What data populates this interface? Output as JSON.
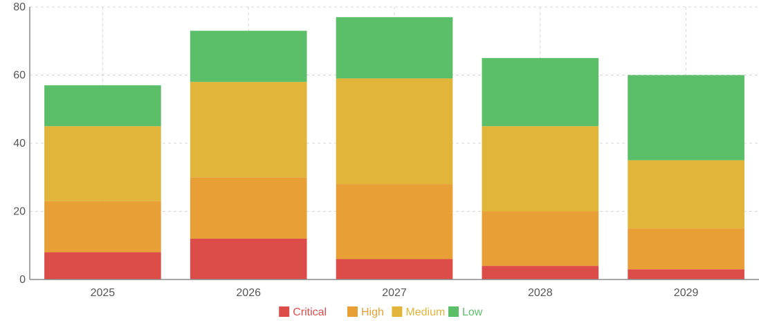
{
  "chart_data": {
    "type": "bar",
    "stacked": true,
    "categories": [
      "2025",
      "2026",
      "2027",
      "2028",
      "2029"
    ],
    "series": [
      {
        "name": "Critical",
        "color": "#dc4d4a",
        "values": [
          8,
          12,
          6,
          4,
          3
        ]
      },
      {
        "name": "High",
        "color": "#e89f35",
        "values": [
          15,
          18,
          22,
          16,
          12
        ]
      },
      {
        "name": "Medium",
        "color": "#e1b53a",
        "values": [
          22,
          28,
          31,
          25,
          20
        ]
      },
      {
        "name": "Low",
        "color": "#5bbf6a",
        "values": [
          12,
          15,
          18,
          20,
          25
        ]
      }
    ],
    "yticks": [
      0,
      20,
      40,
      60,
      80
    ],
    "ylim": [
      0,
      80
    ],
    "grid": true,
    "legend_position": "bottom-center"
  }
}
